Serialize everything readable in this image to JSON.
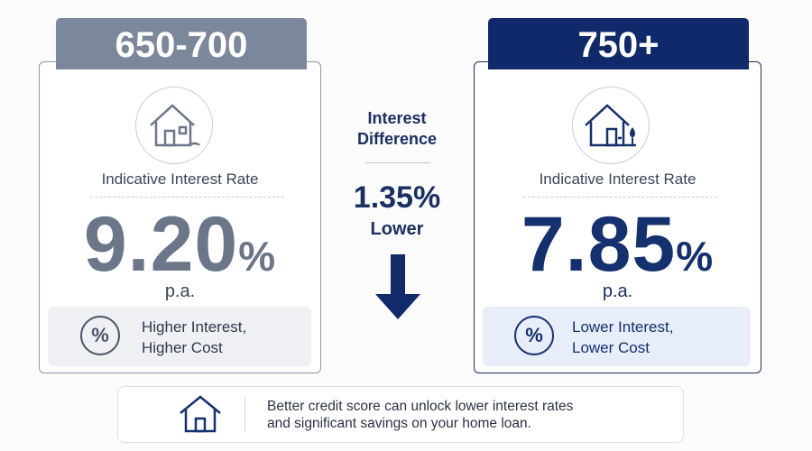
{
  "cards": [
    {
      "range": "650-700",
      "label": "Indicative Interest Rate",
      "rate": "9.20",
      "unit": "%",
      "period": "p.a.",
      "badge": "%",
      "note": [
        "Higher Interest,",
        "Higher Cost"
      ]
    },
    {
      "range": "750+",
      "label": "Indicative Interest Rate",
      "rate": "7.85",
      "unit": "%",
      "period": "p.a.",
      "badge": "%",
      "note": [
        "Lower Interest,",
        "Lower Cost"
      ]
    }
  ],
  "difference": {
    "title": [
      "Interest",
      "Difference"
    ],
    "value": "1.35%",
    "direction": "Lower"
  },
  "footer": {
    "lines": [
      "Better credit score can unlock lower interest rates",
      "and significant savings on your home loan."
    ]
  }
}
